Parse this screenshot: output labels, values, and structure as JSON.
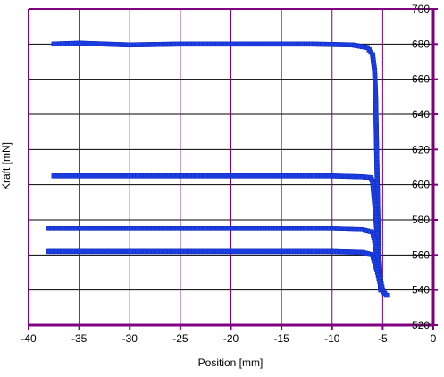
{
  "chart_data": {
    "type": "scatter",
    "title": "",
    "xlabel": "Position [mm]",
    "ylabel": "Kraft [mN]",
    "xlim": [
      -40,
      0
    ],
    "ylim": [
      520,
      700
    ],
    "x_ticks": [
      -40,
      -35,
      -30,
      -25,
      -20,
      -15,
      -10,
      -5,
      0
    ],
    "y_ticks": [
      520,
      540,
      560,
      580,
      600,
      620,
      640,
      660,
      680,
      700
    ],
    "y_axis_side": "right",
    "grid": {
      "horizontal": true,
      "vertical": true
    },
    "legend": "none",
    "colors": {
      "series": "#1f3fe6",
      "grid_vertical": "#800080",
      "grid_horizontal": "#000000",
      "axis": "#800080"
    },
    "series": [
      {
        "x": [
          -37.5,
          -35,
          -30,
          -25,
          -20,
          -15,
          -12,
          -8,
          -6.5,
          -6.0,
          -5.8,
          -5.7,
          -5.6,
          -5.5,
          -5.4,
          -5.2
        ],
        "y": [
          680,
          680.5,
          679.5,
          680,
          680,
          680,
          680,
          679.5,
          678,
          674,
          665,
          650,
          620,
          590,
          560,
          540
        ]
      },
      {
        "x": [
          -37.5,
          -35,
          -30,
          -25,
          -20,
          -15,
          -10,
          -7,
          -6.2,
          -6.0,
          -5.8,
          -5.6,
          -5.4,
          -5.2
        ],
        "y": [
          605,
          605,
          605,
          605,
          605,
          605,
          605,
          604.5,
          604,
          602,
          590,
          575,
          560,
          545
        ]
      },
      {
        "x": [
          -38,
          -35,
          -30,
          -25,
          -20,
          -15,
          -10,
          -7,
          -6.0,
          -5.8,
          -5.6,
          -5.4,
          -5.2,
          -5.0
        ],
        "y": [
          575,
          575,
          575,
          575,
          575,
          575,
          575,
          574.5,
          573,
          568,
          560,
          552,
          545,
          540
        ]
      },
      {
        "x": [
          -38,
          -35,
          -30,
          -25,
          -20,
          -15,
          -10,
          -7,
          -6.0,
          -5.8,
          -5.5,
          -5.3,
          -5.0,
          -4.8,
          -4.6
        ],
        "y": [
          562,
          562,
          562,
          562,
          562,
          562,
          562,
          561.5,
          560,
          556,
          550,
          545,
          540,
          538,
          537
        ]
      }
    ]
  }
}
